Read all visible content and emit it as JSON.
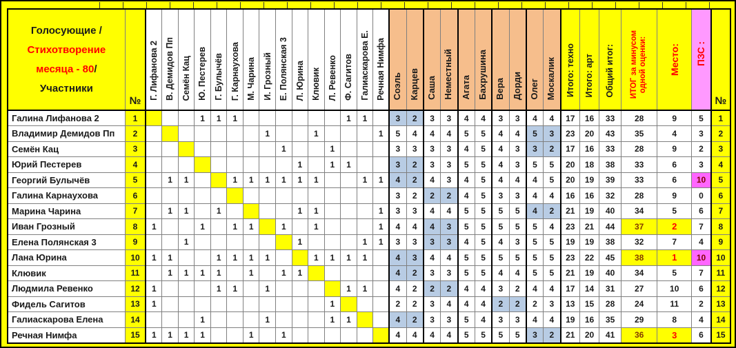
{
  "colors": {
    "frame_yellow": "#FFFF00",
    "judge_orange": "#F6BE8C",
    "subtracted_blue": "#B8CCE4",
    "pzs_magenta": "#FF66FF",
    "pzs_header_pink": "#FF99FF",
    "accent_red": "#FF0000",
    "winner_brown": "#833C00",
    "grid_gray": "#7f7f7f",
    "comment_green": "#1F7244"
  },
  "header": {
    "title": {
      "line1": "Голосующие /",
      "line2": "Стихотворение",
      "line3_red": "месяца - 80",
      "line3_slash": "/",
      "line4": "Участники"
    },
    "num_label": "№",
    "voters": [
      "Г. Лифанова 2",
      "В. Демидов Пп",
      "Семён Кац",
      "Ю. Пестерев",
      "Г. Булычёв",
      "Г. Карнаухова",
      "М. Чарина",
      "И. Грозный",
      "Е. Полянская 3",
      "Л. Юрина",
      "Клювик",
      "Л. Ревенко",
      "Ф. Сагитов",
      "Галиаскарова Е.",
      "Речная Нимфа"
    ],
    "judges": [
      "Соэль",
      "Карцев",
      "Саша",
      "Неместный",
      "Агата",
      "Бахрушина",
      "Вера",
      "Дорди",
      "Олег",
      "Москалик"
    ],
    "tech_label": "Итого: техно",
    "art_label": "Итого: арт",
    "total_label": "Общий итог:",
    "minus_line1": "ИТОГ за минусом",
    "minus_line2": "одной оценки:",
    "place_label": "Место:",
    "pzs_label": "ПЗС :"
  },
  "rows": [
    {
      "name": "Галина Лифанова 2",
      "num": 1,
      "self": 1,
      "votes": [
        "",
        "",
        "",
        "1",
        "1",
        "1",
        "",
        "",
        "",
        "",
        "",
        "",
        "1",
        "1",
        ""
      ],
      "scores": [
        3,
        2,
        3,
        3,
        4,
        4,
        3,
        3,
        4,
        4
      ],
      "hl": [
        0,
        1
      ],
      "tech": 17,
      "art": 16,
      "total": 33,
      "minus": 28,
      "place": 9,
      "pzs": 5,
      "win": false,
      "pzs_hl": false
    },
    {
      "name": "Владимир Демидов Пп",
      "num": 2,
      "self": 2,
      "votes": [
        "",
        "",
        "",
        "",
        "",
        "",
        "",
        "1",
        "",
        "",
        "1",
        "",
        "",
        "",
        "1"
      ],
      "scores": [
        5,
        4,
        4,
        4,
        5,
        5,
        4,
        4,
        5,
        3
      ],
      "hl": [
        8,
        9
      ],
      "tech": 23,
      "art": 20,
      "total": 43,
      "minus": 35,
      "place": 4,
      "pzs": 3,
      "win": false,
      "pzs_hl": false
    },
    {
      "name": "Семён Кац",
      "num": 3,
      "self": 3,
      "votes": [
        "",
        "",
        "",
        "",
        "",
        "",
        "",
        "",
        "1",
        "",
        "",
        "1",
        "",
        "",
        ""
      ],
      "scores": [
        3,
        3,
        3,
        3,
        4,
        5,
        4,
        3,
        3,
        2
      ],
      "hl": [
        8,
        9
      ],
      "tech": 17,
      "art": 16,
      "total": 33,
      "minus": 28,
      "place": 9,
      "pzs": 2,
      "win": false,
      "pzs_hl": false
    },
    {
      "name": "Юрий Пестерев",
      "num": 4,
      "self": 4,
      "votes": [
        "",
        "",
        "",
        "",
        "",
        "",
        "",
        "",
        "",
        "1",
        "",
        "1",
        "1",
        "",
        ""
      ],
      "scores": [
        3,
        2,
        3,
        3,
        5,
        5,
        4,
        3,
        5,
        5
      ],
      "hl": [
        0,
        1
      ],
      "tech": 20,
      "art": 18,
      "total": 38,
      "minus": 33,
      "place": 6,
      "pzs": 3,
      "win": false,
      "pzs_hl": false
    },
    {
      "name": "Георгий Булычёв",
      "num": 5,
      "self": 5,
      "votes": [
        "",
        "1",
        "1",
        "",
        "",
        "1",
        "1",
        "1",
        "1",
        "1",
        "1",
        "",
        "",
        "1",
        "1"
      ],
      "scores": [
        4,
        2,
        4,
        3,
        4,
        5,
        4,
        4,
        4,
        5
      ],
      "hl": [
        0,
        1
      ],
      "tech": 20,
      "art": 19,
      "total": 39,
      "minus": 33,
      "place": 6,
      "pzs": 10,
      "win": false,
      "pzs_hl": true
    },
    {
      "name": "Галина Карнаухова",
      "num": 6,
      "self": 6,
      "votes": [
        "",
        "",
        "",
        "",
        "",
        "",
        "",
        "",
        "",
        "",
        "",
        "",
        "",
        "",
        ""
      ],
      "scores": [
        3,
        2,
        2,
        2,
        4,
        5,
        3,
        3,
        4,
        4
      ],
      "hl": [
        2,
        3
      ],
      "tech": 16,
      "art": 16,
      "total": 32,
      "minus": 28,
      "place": 9,
      "pzs": 0,
      "win": false,
      "pzs_hl": false
    },
    {
      "name": "Марина Чарина",
      "num": 7,
      "self": 7,
      "votes": [
        "",
        "1",
        "1",
        "",
        "1",
        "",
        "",
        "",
        "",
        "1",
        "1",
        "",
        "",
        "",
        "1"
      ],
      "scores": [
        3,
        3,
        4,
        4,
        5,
        5,
        5,
        5,
        4,
        2
      ],
      "hl": [
        8,
        9
      ],
      "tech": 21,
      "art": 19,
      "total": 40,
      "minus": 34,
      "place": 5,
      "pzs": 6,
      "win": false,
      "pzs_hl": false
    },
    {
      "name": "Иван Грозный",
      "num": 8,
      "self": 8,
      "votes": [
        "1",
        "",
        "",
        "1",
        "",
        "1",
        "1",
        "",
        "1",
        "",
        "1",
        "",
        "",
        "",
        "1"
      ],
      "scores": [
        4,
        4,
        4,
        3,
        5,
        5,
        5,
        5,
        5,
        4
      ],
      "hl": [
        2,
        3
      ],
      "tech": 23,
      "art": 21,
      "total": 44,
      "minus": 37,
      "place": 2,
      "pzs": 7,
      "win": true,
      "pzs_hl": false
    },
    {
      "name": "Елена Полянская 3",
      "num": 9,
      "self": 9,
      "votes": [
        "",
        "",
        "1",
        "",
        "",
        "",
        "",
        "",
        "",
        "1",
        "",
        "",
        "",
        "1",
        "1"
      ],
      "scores": [
        3,
        3,
        3,
        3,
        4,
        5,
        4,
        3,
        5,
        5
      ],
      "hl": [
        2,
        3
      ],
      "tech": 19,
      "art": 19,
      "total": 38,
      "minus": 32,
      "place": 7,
      "pzs": 4,
      "win": false,
      "pzs_hl": false
    },
    {
      "name": "Лана Юрина",
      "num": 10,
      "self": 10,
      "votes": [
        "1",
        "1",
        "",
        "",
        "1",
        "1",
        "1",
        "1",
        "",
        "",
        "1",
        "1",
        "1",
        "1",
        ""
      ],
      "scores": [
        4,
        3,
        4,
        4,
        5,
        5,
        5,
        5,
        5,
        5
      ],
      "hl": [
        0,
        1
      ],
      "tech": 23,
      "art": 22,
      "total": 45,
      "minus": 38,
      "place": 1,
      "pzs": 10,
      "win": true,
      "pzs_hl": true
    },
    {
      "name": "Клювик",
      "num": 11,
      "self": 11,
      "votes": [
        "",
        "1",
        "1",
        "1",
        "1",
        "",
        "1",
        "",
        "1",
        "1",
        "",
        "",
        "",
        "",
        ""
      ],
      "scores": [
        4,
        2,
        3,
        3,
        5,
        5,
        4,
        4,
        5,
        5
      ],
      "hl": [
        0,
        1
      ],
      "tech": 21,
      "art": 19,
      "total": 40,
      "minus": 34,
      "place": 5,
      "pzs": 7,
      "win": false,
      "pzs_hl": false
    },
    {
      "name": "Людмила Ревенко",
      "num": 12,
      "self": 12,
      "votes": [
        "1",
        "",
        "",
        "",
        "1",
        "1",
        "",
        "1",
        "",
        "",
        "",
        "",
        "1",
        "1",
        ""
      ],
      "scores": [
        4,
        2,
        2,
        2,
        4,
        4,
        3,
        2,
        4,
        4
      ],
      "hl": [
        2,
        3
      ],
      "tech": 17,
      "art": 14,
      "total": 31,
      "minus": 27,
      "place": 10,
      "pzs": 6,
      "win": false,
      "pzs_hl": false
    },
    {
      "name": "Фидель Сагитов",
      "num": 13,
      "self": 13,
      "votes": [
        "1",
        "",
        "",
        "",
        "",
        "",
        "",
        "",
        "",
        "",
        "",
        "1",
        "",
        "",
        ""
      ],
      "scores": [
        2,
        2,
        3,
        4,
        4,
        4,
        2,
        2,
        2,
        3
      ],
      "hl": [
        6,
        7
      ],
      "tech": 13,
      "art": 15,
      "total": 28,
      "minus": 24,
      "place": 11,
      "pzs": 2,
      "win": false,
      "pzs_hl": false
    },
    {
      "name": "Галиаскарова Елена",
      "num": 14,
      "self": 14,
      "votes": [
        "",
        "",
        "",
        "1",
        "",
        "",
        "",
        "1",
        "",
        "",
        "",
        "1",
        "1",
        "",
        ""
      ],
      "scores": [
        4,
        2,
        3,
        3,
        5,
        4,
        3,
        3,
        4,
        4
      ],
      "hl": [
        0,
        1
      ],
      "tech": 19,
      "art": 16,
      "total": 35,
      "minus": 29,
      "place": 8,
      "pzs": 4,
      "win": false,
      "pzs_hl": false
    },
    {
      "name": "Речная Нимфа",
      "num": 15,
      "self": 15,
      "votes": [
        "1",
        "1",
        "1",
        "1",
        "",
        "",
        "1",
        "",
        "1",
        "",
        "",
        "",
        "",
        "",
        ""
      ],
      "scores": [
        4,
        4,
        4,
        4,
        5,
        5,
        5,
        5,
        3,
        2
      ],
      "hl": [
        8,
        9
      ],
      "tech": 21,
      "art": 20,
      "total": 41,
      "minus": 36,
      "place": 3,
      "pzs": 6,
      "win": true,
      "pzs_hl": false
    }
  ]
}
